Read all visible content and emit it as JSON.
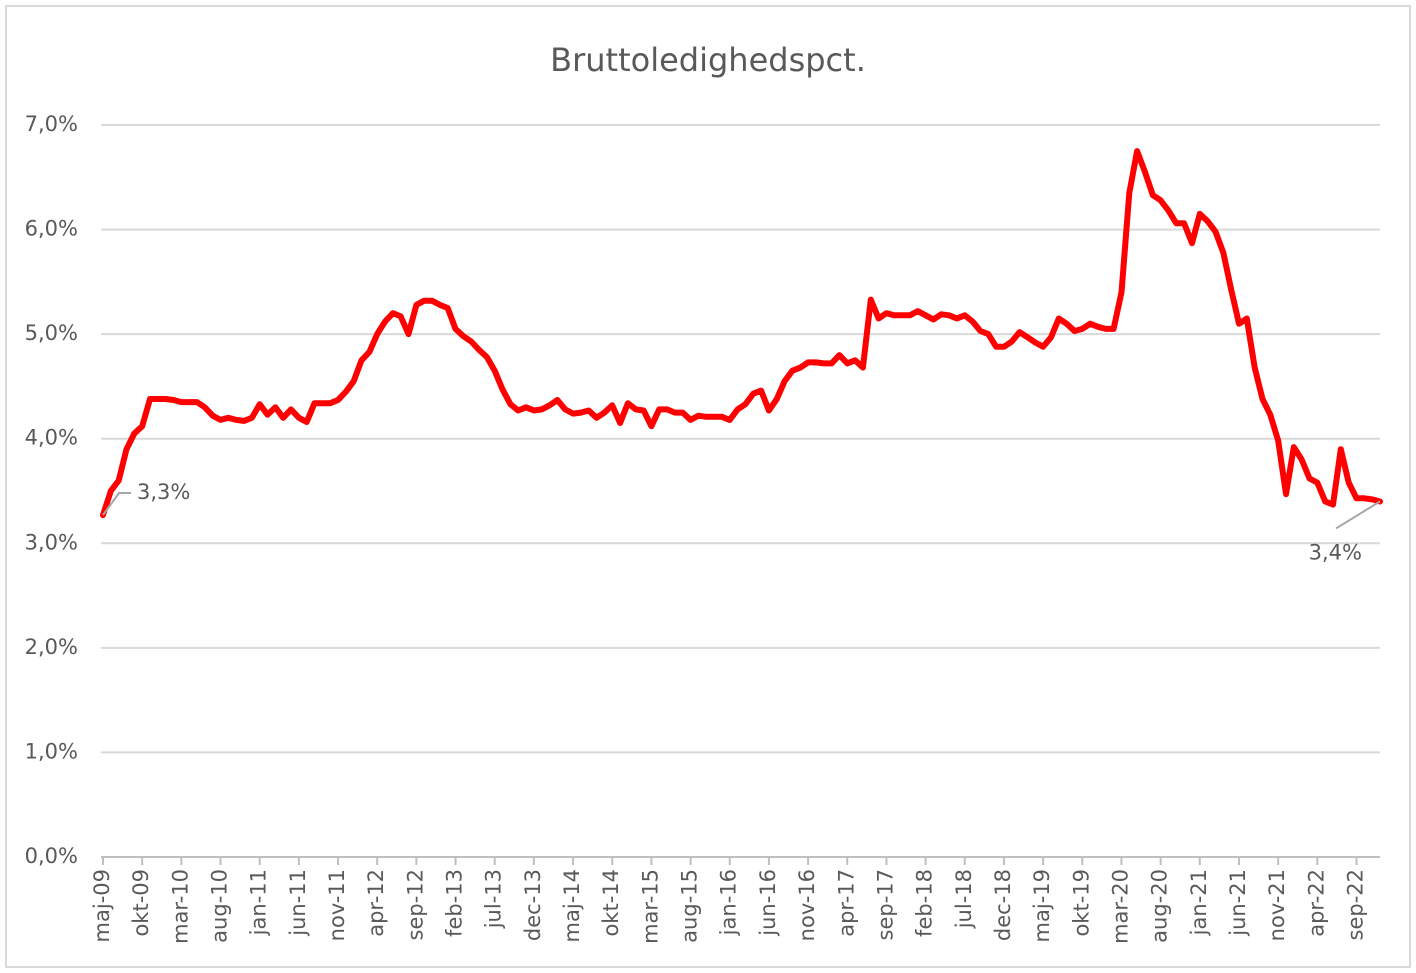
{
  "chart_data": {
    "type": "line",
    "title": "Bruttoledighedspct.",
    "categories": [
      "maj-09",
      null,
      null,
      null,
      null,
      "okt-09",
      null,
      null,
      null,
      null,
      "mar-10",
      null,
      null,
      null,
      null,
      "aug-10",
      null,
      null,
      null,
      null,
      "jan-11",
      null,
      null,
      null,
      null,
      "jun-11",
      null,
      null,
      null,
      null,
      "nov-11",
      null,
      null,
      null,
      null,
      "apr-12",
      null,
      null,
      null,
      null,
      "sep-12",
      null,
      null,
      null,
      null,
      "feb-13",
      null,
      null,
      null,
      null,
      "jul-13",
      null,
      null,
      null,
      null,
      "dec-13",
      null,
      null,
      null,
      null,
      "maj-14",
      null,
      null,
      null,
      null,
      "okt-14",
      null,
      null,
      null,
      null,
      "mar-15",
      null,
      null,
      null,
      null,
      "aug-15",
      null,
      null,
      null,
      null,
      "jan-16",
      null,
      null,
      null,
      null,
      "jun-16",
      null,
      null,
      null,
      null,
      "nov-16",
      null,
      null,
      null,
      null,
      "apr-17",
      null,
      null,
      null,
      null,
      "sep-17",
      null,
      null,
      null,
      null,
      "feb-18",
      null,
      null,
      null,
      null,
      "jul-18",
      null,
      null,
      null,
      null,
      "dec-18",
      null,
      null,
      null,
      null,
      "maj-19",
      null,
      null,
      null,
      null,
      "okt-19",
      null,
      null,
      null,
      null,
      "mar-20",
      null,
      null,
      null,
      null,
      "aug-20",
      null,
      null,
      null,
      null,
      "jan-21",
      null,
      null,
      null,
      null,
      "jun-21",
      null,
      null,
      null,
      null,
      "nov-21",
      null,
      null,
      null,
      null,
      "apr-22",
      null,
      null,
      null,
      null,
      "sep-22",
      null,
      null,
      null
    ],
    "series": [
      {
        "color": "#ff0000",
        "values": [
          3.27,
          3.5,
          3.6,
          3.9,
          4.05,
          4.12,
          4.38,
          4.38,
          4.38,
          4.37,
          4.35,
          4.35,
          4.35,
          4.3,
          4.22,
          4.18,
          4.2,
          4.18,
          4.17,
          4.2,
          4.33,
          4.23,
          4.3,
          4.2,
          4.28,
          4.2,
          4.16,
          4.34,
          4.34,
          4.34,
          4.37,
          4.45,
          4.55,
          4.75,
          4.83,
          5.0,
          5.12,
          5.2,
          5.17,
          5.0,
          5.28,
          5.32,
          5.32,
          5.28,
          5.25,
          5.05,
          4.98,
          4.93,
          4.85,
          4.78,
          4.65,
          4.47,
          4.33,
          4.27,
          4.3,
          4.27,
          4.28,
          4.32,
          4.37,
          4.28,
          4.24,
          4.25,
          4.27,
          4.2,
          4.25,
          4.32,
          4.15,
          4.34,
          4.28,
          4.27,
          4.12,
          4.28,
          4.28,
          4.25,
          4.25,
          4.18,
          4.22,
          4.21,
          4.21,
          4.21,
          4.18,
          4.28,
          4.33,
          4.43,
          4.46,
          4.27,
          4.38,
          4.55,
          4.65,
          4.68,
          4.73,
          4.73,
          4.72,
          4.72,
          4.8,
          4.72,
          4.75,
          4.68,
          5.33,
          5.15,
          5.2,
          5.18,
          5.18,
          5.18,
          5.22,
          5.18,
          5.14,
          5.19,
          5.18,
          5.15,
          5.18,
          5.12,
          5.03,
          5.0,
          4.88,
          4.88,
          4.93,
          5.02,
          4.97,
          4.92,
          4.88,
          4.97,
          5.15,
          5.1,
          5.03,
          5.05,
          5.1,
          5.07,
          5.05,
          5.05,
          5.4,
          6.35,
          6.75,
          6.55,
          6.33,
          6.28,
          6.18,
          6.06,
          6.06,
          5.87,
          6.15,
          6.08,
          5.98,
          5.78,
          5.43,
          5.1,
          5.15,
          4.68,
          4.38,
          4.23,
          3.98,
          3.47,
          3.92,
          3.8,
          3.62,
          3.58,
          3.4,
          3.37,
          3.9,
          3.58,
          3.43,
          3.43,
          3.42,
          3.4
        ],
        "value_labels": [
          "3,3%",
          null,
          null,
          null,
          null,
          null,
          null,
          null,
          null,
          null,
          null,
          null,
          null,
          null,
          null,
          null,
          null,
          null,
          null,
          null,
          null,
          null,
          null,
          null,
          null,
          null,
          null,
          null,
          null,
          null,
          null,
          null,
          null,
          null,
          null,
          null,
          null,
          null,
          null,
          null,
          null,
          null,
          null,
          null,
          null,
          null,
          null,
          null,
          null,
          null,
          null,
          null,
          null,
          null,
          null,
          null,
          null,
          null,
          null,
          null,
          null,
          null,
          null,
          null,
          null,
          null,
          null,
          null,
          null,
          null,
          null,
          null,
          null,
          null,
          null,
          null,
          null,
          null,
          null,
          null,
          null,
          null,
          null,
          null,
          null,
          null,
          null,
          null,
          null,
          null,
          null,
          null,
          null,
          null,
          null,
          null,
          null,
          null,
          null,
          null,
          null,
          null,
          null,
          null,
          null,
          null,
          null,
          null,
          null,
          null,
          null,
          null,
          null,
          null,
          null,
          null,
          null,
          null,
          null,
          null,
          null,
          null,
          null,
          null,
          null,
          null,
          null,
          null,
          null,
          null,
          null,
          null,
          null,
          null,
          null,
          null,
          null,
          null,
          null,
          null,
          null,
          null,
          null,
          null,
          null,
          null,
          null,
          null,
          null,
          null,
          null,
          null,
          null,
          null,
          null,
          null,
          null,
          null,
          null,
          null,
          null,
          null,
          null,
          "3,4%"
        ]
      }
    ],
    "ylim": [
      0,
      7
    ],
    "yticks": [
      {
        "value": 0,
        "label": "0,0%"
      },
      {
        "value": 1,
        "label": "1,0%"
      },
      {
        "value": 2,
        "label": "2,0%"
      },
      {
        "value": 3,
        "label": "3,0%"
      },
      {
        "value": 4,
        "label": "4,0%"
      },
      {
        "value": 5,
        "label": "5,0%"
      },
      {
        "value": 6,
        "label": "6,0%"
      },
      {
        "value": 7,
        "label": "7,0%"
      }
    ],
    "grid": true
  }
}
